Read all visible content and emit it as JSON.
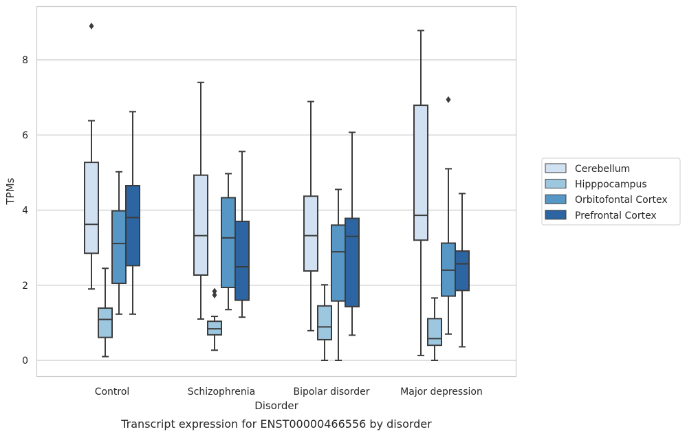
{
  "chart_data": {
    "type": "boxplot",
    "caption": "Transcript expression for ENST00000466556 by disorder",
    "xlabel": "Disorder",
    "ylabel": "TPMs",
    "ylim": [
      -0.4,
      9.45
    ],
    "yticks": [
      0,
      2,
      4,
      6,
      8
    ],
    "grid": "horizontal",
    "legend_position": "right",
    "categories": [
      "Control",
      "Schizophrenia",
      "Bipolar disorder",
      "Major depression"
    ],
    "series": [
      {
        "name": "Cerebellum",
        "color": "#d1e1f1",
        "boxes": [
          {
            "whislo": 1.9,
            "q1": 2.85,
            "med": 3.62,
            "q3": 5.27,
            "whishi": 6.38,
            "fliers": [
              8.9
            ]
          },
          {
            "whislo": 1.1,
            "q1": 2.27,
            "med": 3.32,
            "q3": 4.93,
            "whishi": 7.4,
            "fliers": []
          },
          {
            "whislo": 0.79,
            "q1": 2.38,
            "med": 3.32,
            "q3": 4.37,
            "whishi": 6.89,
            "fliers": []
          },
          {
            "whislo": 0.13,
            "q1": 3.2,
            "med": 3.86,
            "q3": 6.79,
            "whishi": 8.78,
            "fliers": []
          }
        ]
      },
      {
        "name": "Hipppocampus",
        "color": "#9dc6df",
        "boxes": [
          {
            "whislo": 0.1,
            "q1": 0.61,
            "med": 1.09,
            "q3": 1.39,
            "whishi": 2.45,
            "fliers": []
          },
          {
            "whislo": 0.27,
            "q1": 0.68,
            "med": 0.84,
            "q3": 1.04,
            "whishi": 1.17,
            "fliers": [
              1.74,
              1.84
            ]
          },
          {
            "whislo": 0.0,
            "q1": 0.55,
            "med": 0.89,
            "q3": 1.45,
            "whishi": 2.01,
            "fliers": []
          },
          {
            "whislo": 0.0,
            "q1": 0.4,
            "med": 0.58,
            "q3": 1.11,
            "whishi": 1.66,
            "fliers": []
          }
        ]
      },
      {
        "name": "Orbitofontal Cortex",
        "color": "#5797c6",
        "boxes": [
          {
            "whislo": 1.23,
            "q1": 2.05,
            "med": 3.11,
            "q3": 3.98,
            "whishi": 5.02,
            "fliers": []
          },
          {
            "whislo": 1.35,
            "q1": 1.94,
            "med": 3.26,
            "q3": 4.33,
            "whishi": 4.97,
            "fliers": []
          },
          {
            "whislo": 0.0,
            "q1": 1.58,
            "med": 2.89,
            "q3": 3.6,
            "whishi": 4.55,
            "fliers": []
          },
          {
            "whislo": 0.7,
            "q1": 1.71,
            "med": 2.4,
            "q3": 3.12,
            "whishi": 5.1,
            "fliers": [
              6.94
            ]
          }
        ]
      },
      {
        "name": "Prefrontal Cortex",
        "color": "#2c65a1",
        "boxes": [
          {
            "whislo": 1.23,
            "q1": 2.52,
            "med": 3.8,
            "q3": 4.65,
            "whishi": 6.62,
            "fliers": []
          },
          {
            "whislo": 1.15,
            "q1": 1.6,
            "med": 2.49,
            "q3": 3.7,
            "whishi": 5.56,
            "fliers": []
          },
          {
            "whislo": 0.67,
            "q1": 1.43,
            "med": 3.3,
            "q3": 3.78,
            "whishi": 6.07,
            "fliers": []
          },
          {
            "whislo": 0.36,
            "q1": 1.86,
            "med": 2.57,
            "q3": 2.91,
            "whishi": 4.44,
            "fliers": []
          }
        ]
      }
    ]
  }
}
